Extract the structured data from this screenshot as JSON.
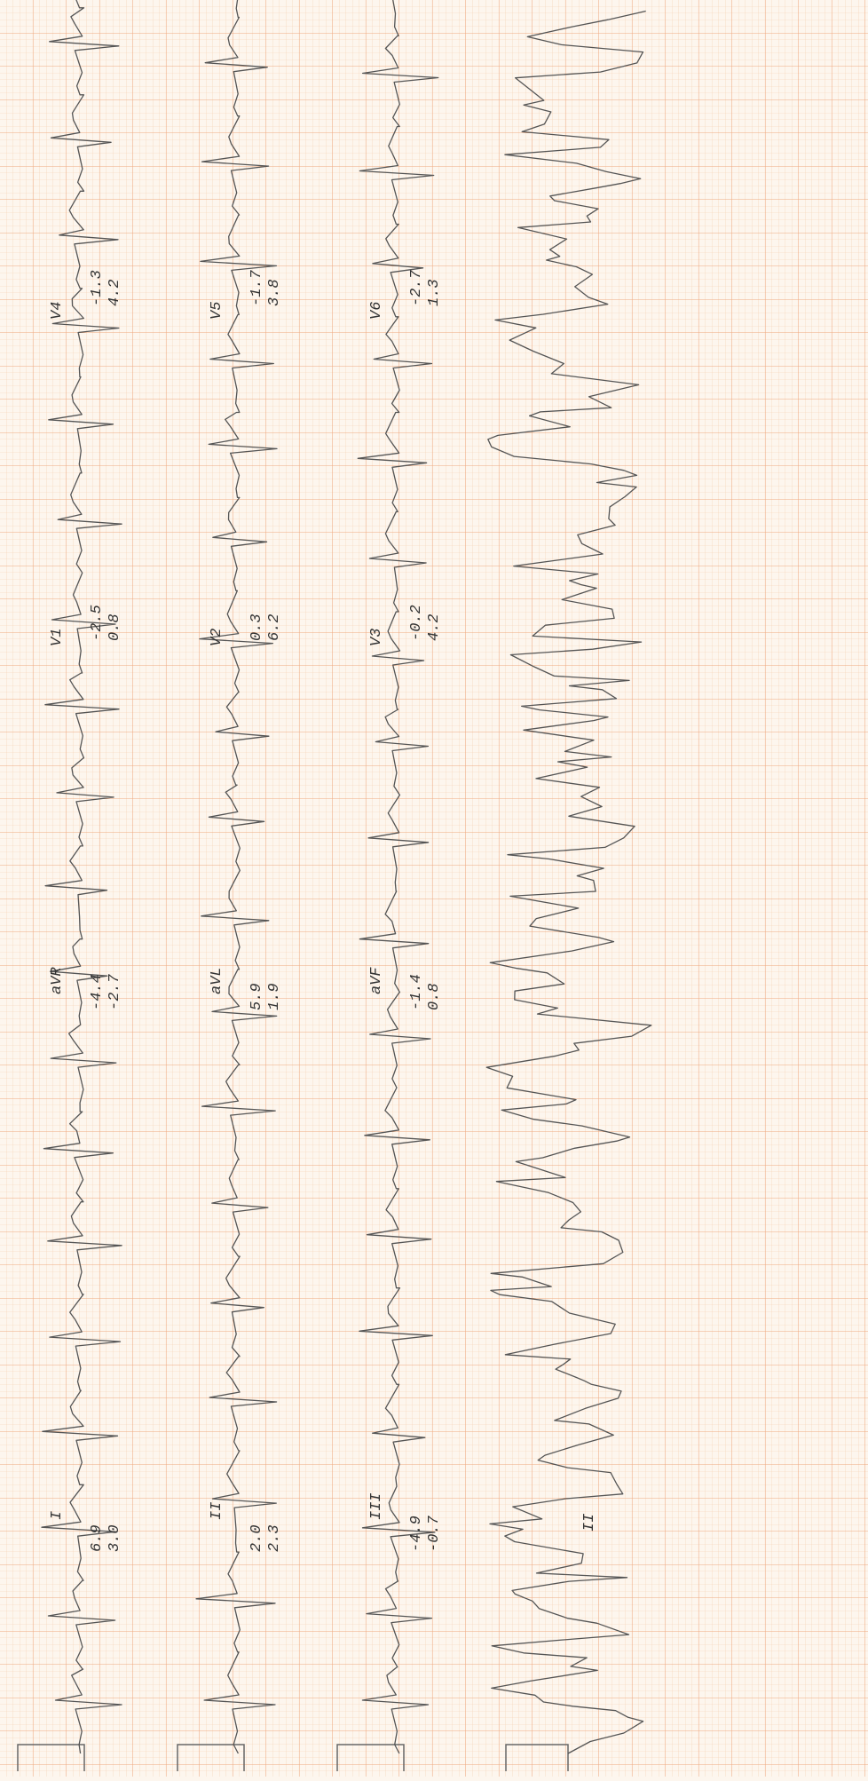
{
  "rows": [
    {
      "leads": [
        {
          "label": "I",
          "measurements": [
            "6.9",
            "3.0"
          ]
        },
        {
          "label": "aVR",
          "measurements": [
            "-4.4",
            "-2.7"
          ]
        },
        {
          "label": "V1",
          "measurements": [
            "-2.5",
            "0.8"
          ]
        },
        {
          "label": "V4",
          "measurements": [
            "-1.3",
            "4.2"
          ]
        }
      ]
    },
    {
      "leads": [
        {
          "label": "II",
          "measurements": [
            "2.0",
            "2.3"
          ]
        },
        {
          "label": "aVL",
          "measurements": [
            "5.9",
            "1.9"
          ]
        },
        {
          "label": "V2",
          "measurements": [
            "0.3",
            "6.2"
          ]
        },
        {
          "label": "V5",
          "measurements": [
            "-1.7",
            "3.8"
          ]
        }
      ]
    },
    {
      "leads": [
        {
          "label": "III",
          "measurements": [
            "-4.9",
            "-0.7"
          ]
        },
        {
          "label": "aVF",
          "measurements": [
            "-1.4",
            "0.8"
          ]
        },
        {
          "label": "V3",
          "measurements": [
            "-0.2",
            "4.2"
          ]
        },
        {
          "label": "V6",
          "measurements": [
            "-2.7",
            "1.3"
          ]
        }
      ]
    }
  ],
  "rhythm": {
    "label": "II"
  }
}
